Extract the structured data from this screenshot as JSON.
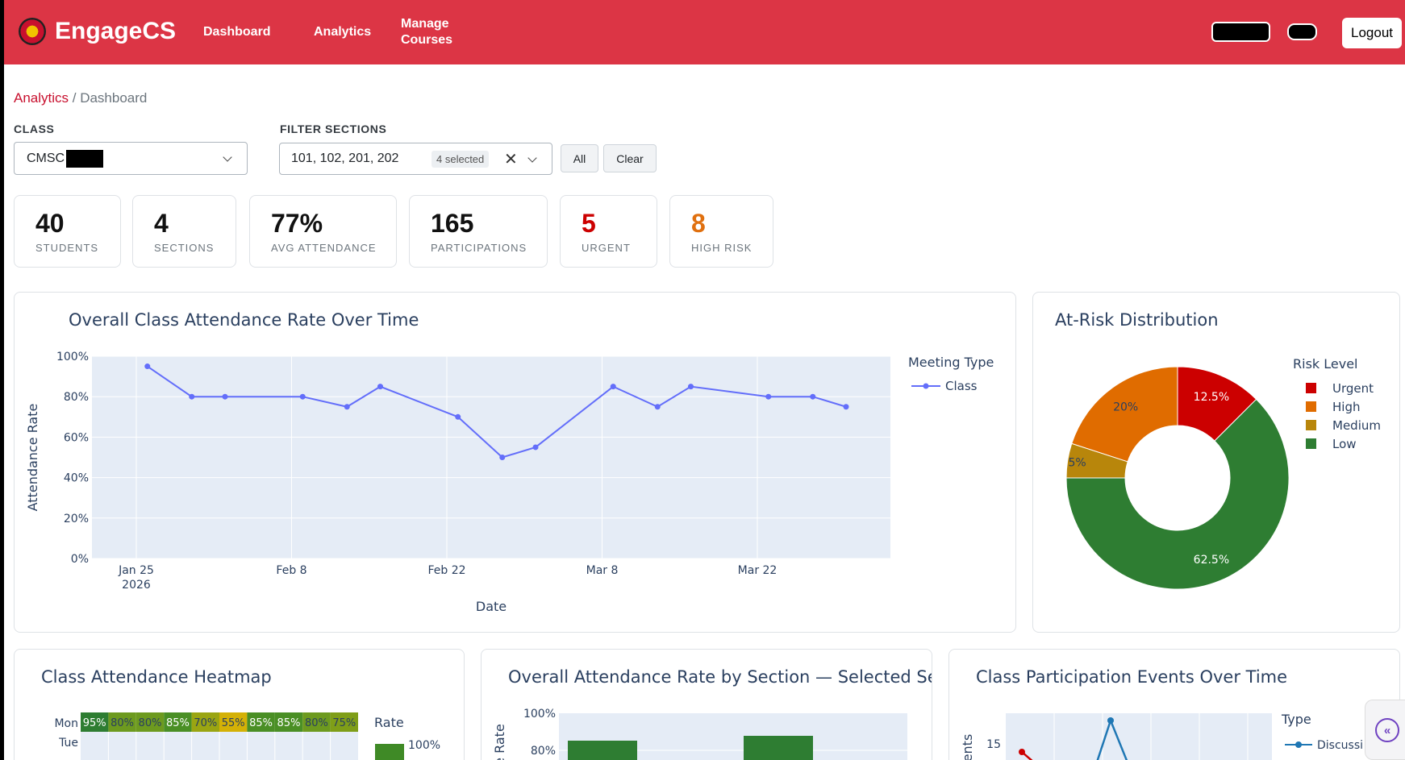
{
  "app": {
    "brand": "EngageCS"
  },
  "nav": {
    "dashboard": "Dashboard",
    "analytics": "Analytics",
    "manage_line1": "Manage",
    "manage_line2": "Courses",
    "logout": "Logout"
  },
  "breadcrumb": {
    "parent": "Analytics",
    "separator": " / ",
    "current": "Dashboard"
  },
  "filters": {
    "class_label": "CLASS",
    "class_value": "CMSC",
    "sections_label": "FILTER SECTIONS",
    "sections_value": "101, 102, 201, 202",
    "sections_count": "4 selected",
    "all_button": "All",
    "clear_button": "Clear"
  },
  "stats": [
    {
      "value": "40",
      "label": "STUDENTS",
      "color": "#111111"
    },
    {
      "value": "4",
      "label": "SECTIONS",
      "color": "#111111"
    },
    {
      "value": "77%",
      "label": "AVG ATTENDANCE",
      "color": "#111111"
    },
    {
      "value": "165",
      "label": "PARTICIPATIONS",
      "color": "#111111"
    },
    {
      "value": "5",
      "label": "URGENT",
      "color": "#cc0000"
    },
    {
      "value": "8",
      "label": "HIGH RISK",
      "color": "#e0700f"
    }
  ],
  "colors": {
    "header": "#dc3545",
    "line": "#636efa",
    "plot_bg": "#e5ecf6",
    "urgent": "#cc0000",
    "high": "#e06c00",
    "medium": "#b8860b",
    "low": "#2e7d32"
  },
  "titles": {
    "attendance": "Overall Class Attendance Rate Over Time",
    "risk": "At-Risk Distribution",
    "heatmap": "Class Attendance Heatmap",
    "by_section": "Overall Attendance Rate by Section — Selected Se",
    "participation": "Class Participation Events Over Time"
  },
  "chart_data": [
    {
      "type": "line",
      "title": "Overall Class Attendance Rate Over Time",
      "xlabel": "Date",
      "ylabel": "Attendance Rate",
      "legend_title": "Meeting Type",
      "x_ticks": [
        "Jan 25\n2026",
        "Feb 8",
        "Feb 22",
        "Mar 8",
        "Mar 22"
      ],
      "y_ticks": [
        "0%",
        "20%",
        "40%",
        "60%",
        "80%",
        "100%"
      ],
      "ylim": [
        0,
        100
      ],
      "series": [
        {
          "name": "Class",
          "points": [
            {
              "x": "2026-01-26",
              "y": 95
            },
            {
              "x": "2026-01-30",
              "y": 80
            },
            {
              "x": "2026-02-02",
              "y": 80
            },
            {
              "x": "2026-02-09",
              "y": 80
            },
            {
              "x": "2026-02-13",
              "y": 75
            },
            {
              "x": "2026-02-16",
              "y": 85
            },
            {
              "x": "2026-02-23",
              "y": 70
            },
            {
              "x": "2026-02-27",
              "y": 50
            },
            {
              "x": "2026-03-02",
              "y": 55
            },
            {
              "x": "2026-03-09",
              "y": 85
            },
            {
              "x": "2026-03-13",
              "y": 75
            },
            {
              "x": "2026-03-16",
              "y": 85
            },
            {
              "x": "2026-03-23",
              "y": 80
            },
            {
              "x": "2026-03-27",
              "y": 80
            },
            {
              "x": "2026-03-30",
              "y": 75
            }
          ]
        }
      ]
    },
    {
      "type": "pie",
      "title": "At-Risk Distribution",
      "legend_title": "Risk Level",
      "slices": [
        {
          "label": "Urgent",
          "value": 12.5,
          "text": "12.5%"
        },
        {
          "label": "High",
          "value": 20,
          "text": "20%"
        },
        {
          "label": "Medium",
          "value": 5,
          "text": "5%"
        },
        {
          "label": "Low",
          "value": 62.5,
          "text": "62.5%"
        }
      ]
    },
    {
      "type": "heatmap",
      "title": "Class Attendance Heatmap",
      "rows": [
        "Mon",
        "Tue"
      ],
      "cells": {
        "Mon": [
          "95%",
          "80%",
          "80%",
          "85%",
          "70%",
          "55%",
          "85%",
          "85%",
          "80%",
          "75%"
        ]
      },
      "colorbar_title": "Rate",
      "colorbar_max": "100%"
    },
    {
      "type": "bar",
      "title": "Overall Attendance Rate by Section — Selected Se",
      "ylabel": "Rate",
      "y_ticks": [
        "80%",
        "100%"
      ]
    },
    {
      "type": "line",
      "title": "Class Participation Events Over Time",
      "legend_title": "Type",
      "legend_items": [
        "Discussi"
      ],
      "y_ticks": [
        "15"
      ]
    }
  ]
}
